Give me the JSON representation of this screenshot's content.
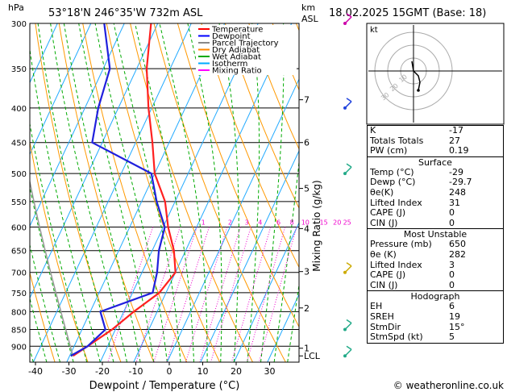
{
  "header": {
    "hpa": "hPa",
    "location": "53°18'N  246°35'W  732m  ASL",
    "km": "km",
    "asl": "ASL",
    "datetime": "18.02.2025  15GMT  (Base: 18)"
  },
  "legend": [
    {
      "label": "Temperature",
      "color": "#ff0000"
    },
    {
      "label": "Dewpoint",
      "color": "#0000ff"
    },
    {
      "label": "Parcel Trajectory",
      "color": "#888888"
    },
    {
      "label": "Dry Adiabat",
      "color": "#ff8800"
    },
    {
      "label": "Wet Adiabat",
      "color": "#00aa00"
    },
    {
      "label": "Isotherm",
      "color": "#00aaff"
    },
    {
      "label": "Mixing Ratio",
      "color": "#ff00ff"
    }
  ],
  "colors": {
    "temperature": "#ff2020",
    "dewpoint": "#2020dd",
    "parcel": "#999999",
    "dry_adiabat": "#ff9900",
    "wet_adiabat": "#00aa00",
    "isotherm": "#22aaff",
    "mixing_ratio": "#ee00cc",
    "wind_barb": "#ccaa00"
  },
  "chart_data": {
    "type": "skew-t",
    "xlabel": "Dewpoint / Temperature (°C)",
    "ylabel": "Mixing Ratio (g/kg)",
    "x_ticks": [
      "-40",
      "-30",
      "-20",
      "-10",
      "0",
      "10",
      "20",
      "30"
    ],
    "x_values": [
      -40,
      -30,
      -20,
      -10,
      0,
      10,
      20,
      30
    ],
    "p_ticks": [
      300,
      350,
      400,
      450,
      500,
      550,
      600,
      650,
      700,
      750,
      800,
      850,
      900
    ],
    "p_range": [
      300,
      950
    ],
    "km_ticks": [
      {
        "label": "7",
        "p": 389
      },
      {
        "label": "6",
        "p": 450
      },
      {
        "label": "5",
        "p": 526
      },
      {
        "label": "4",
        "p": 603
      },
      {
        "label": "3",
        "p": 698
      },
      {
        "label": "2",
        "p": 790
      },
      {
        "label": "1",
        "p": 906
      },
      {
        "label": "LCL",
        "p": 930
      }
    ],
    "mixing_ratio_labels": [
      {
        "label": "1",
        "p": 600,
        "t": -8
      },
      {
        "label": "2",
        "p": 600,
        "t": 0
      },
      {
        "label": "3",
        "p": 600,
        "t": 5
      },
      {
        "label": "4",
        "p": 600,
        "t": 9
      },
      {
        "label": "6",
        "p": 600,
        "t": 14.5
      },
      {
        "label": "8",
        "p": 600,
        "t": 18.5
      },
      {
        "label": "10",
        "p": 600,
        "t": 22.5
      },
      {
        "label": "15",
        "p": 600,
        "t": 28
      },
      {
        "label": "20",
        "p": 600,
        "t": 32
      },
      {
        "label": "25",
        "p": 600,
        "t": 35
      }
    ],
    "series": [
      {
        "name": "Temperature",
        "p": [
          300,
          350,
          400,
          450,
          500,
          550,
          600,
          650,
          700,
          750,
          800,
          850,
          900,
          930
        ],
        "t": [
          -52,
          -47,
          -41,
          -35,
          -30,
          -23,
          -18.5,
          -13.5,
          -10,
          -12,
          -17,
          -21,
          -26,
          -29
        ]
      },
      {
        "name": "Dewpoint",
        "p": [
          300,
          350,
          400,
          450,
          500,
          550,
          600,
          650,
          700,
          750,
          800,
          850,
          900,
          930
        ],
        "t": [
          -66,
          -58,
          -56,
          -53,
          -31,
          -25.5,
          -19.5,
          -18,
          -15.5,
          -14,
          -27,
          -23,
          -26,
          -29.7
        ]
      }
    ]
  },
  "hodograph": {
    "label": "kt",
    "ring_labels": [
      "10",
      "20",
      "30"
    ]
  },
  "indices": {
    "top": [
      {
        "k": "K",
        "v": "-17"
      },
      {
        "k": "Totals Totals",
        "v": "27"
      },
      {
        "k": "PW (cm)",
        "v": "0.19"
      }
    ],
    "surface_title": "Surface",
    "surface": [
      {
        "k": "Temp (°C)",
        "v": "-29"
      },
      {
        "k": "Dewp (°C)",
        "v": "-29.7"
      },
      {
        "k": "θe(K)",
        "v": "248"
      },
      {
        "k": "Lifted Index",
        "v": "31"
      },
      {
        "k": "CAPE (J)",
        "v": "0"
      },
      {
        "k": "CIN (J)",
        "v": "0"
      }
    ],
    "mu_title": "Most Unstable",
    "mu": [
      {
        "k": "Pressure (mb)",
        "v": "650"
      },
      {
        "k": "θe (K)",
        "v": "282"
      },
      {
        "k": "Lifted Index",
        "v": "3"
      },
      {
        "k": "CAPE (J)",
        "v": "0"
      },
      {
        "k": "CIN (J)",
        "v": "0"
      }
    ],
    "hodo_title": "Hodograph",
    "hodo": [
      {
        "k": "EH",
        "v": "6"
      },
      {
        "k": "SREH",
        "v": "19"
      },
      {
        "k": "StmDir",
        "v": "15°"
      },
      {
        "k": "StmSpd (kt)",
        "v": "5"
      }
    ]
  },
  "footer": {
    "copyright": "© weatheronline.co.uk"
  }
}
